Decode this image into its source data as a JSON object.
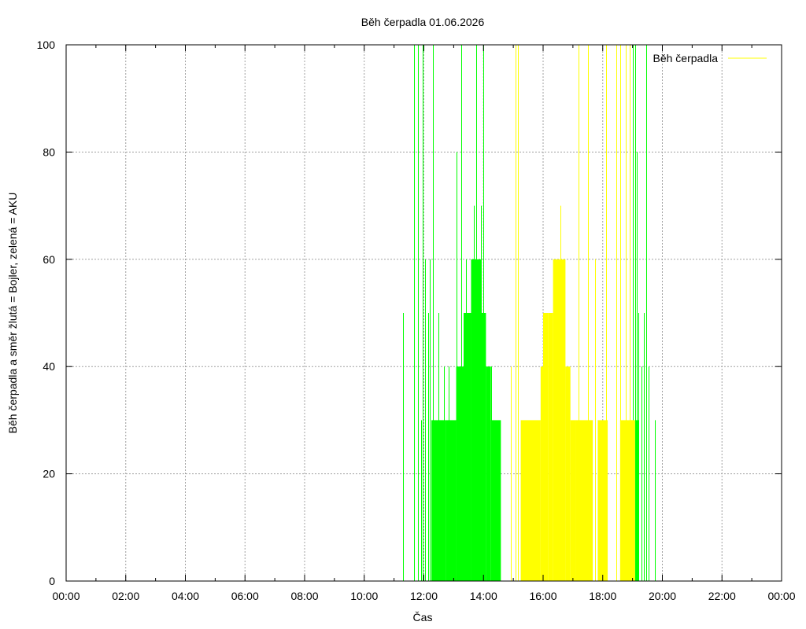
{
  "chart_data": {
    "type": "area",
    "title": "Běh čerpadla 01.06.2026",
    "xlabel": "Čas",
    "ylabel": "Běh čerpadla a směr žlutá = Bojler, zelená = AKU",
    "xlim": [
      "00:00",
      "24:00"
    ],
    "ylim": [
      0,
      100
    ],
    "x_ticks": [
      "00:00",
      "02:00",
      "04:00",
      "06:00",
      "08:00",
      "10:00",
      "12:00",
      "14:00",
      "16:00",
      "18:00",
      "20:00",
      "22:00",
      "00:00"
    ],
    "y_ticks": [
      "0",
      "20",
      "40",
      "60",
      "80",
      "100"
    ],
    "grid": true,
    "legend": {
      "position": "top-right",
      "label": "Běh čerpadla",
      "color": "#ffff00"
    },
    "colors": {
      "green": "#00ff00",
      "yellow": "#ffff00",
      "grid": "#a0a0a0"
    },
    "series": [
      {
        "color": "green",
        "bars": [
          {
            "from": "12:15",
            "to": "12:45",
            "value": 30
          },
          {
            "from": "12:45",
            "to": "13:05",
            "value": 30
          },
          {
            "from": "13:05",
            "to": "13:20",
            "value": 40
          },
          {
            "from": "13:20",
            "to": "13:35",
            "value": 50
          },
          {
            "from": "13:35",
            "to": "13:55",
            "value": 60
          },
          {
            "from": "13:55",
            "to": "14:05",
            "value": 50
          },
          {
            "from": "14:05",
            "to": "14:15",
            "value": 40
          },
          {
            "from": "14:15",
            "to": "14:35",
            "value": 30
          },
          {
            "from": "19:05",
            "to": "19:13",
            "value": 30
          }
        ],
        "spikes": [
          {
            "time": "11:18",
            "value": 50
          },
          {
            "time": "11:40",
            "value": 100
          },
          {
            "time": "11:48",
            "value": 100
          },
          {
            "time": "11:55",
            "value": 30
          },
          {
            "time": "11:58",
            "value": 100
          },
          {
            "time": "12:03",
            "value": 60
          },
          {
            "time": "12:08",
            "value": 50
          },
          {
            "time": "12:12",
            "value": 60
          },
          {
            "time": "12:19",
            "value": 100
          },
          {
            "time": "12:30",
            "value": 50
          },
          {
            "time": "12:40",
            "value": 40
          },
          {
            "time": "12:50",
            "value": 40
          },
          {
            "time": "13:05",
            "value": 80
          },
          {
            "time": "13:08",
            "value": 40
          },
          {
            "time": "13:15",
            "value": 100
          },
          {
            "time": "13:25",
            "value": 60
          },
          {
            "time": "13:40",
            "value": 70
          },
          {
            "time": "13:45",
            "value": 100
          },
          {
            "time": "13:55",
            "value": 70
          },
          {
            "time": "14:00",
            "value": 100
          },
          {
            "time": "14:15",
            "value": 40
          },
          {
            "time": "19:00",
            "value": 100
          },
          {
            "time": "19:05",
            "value": 100
          },
          {
            "time": "19:08",
            "value": 80
          },
          {
            "time": "19:12",
            "value": 50
          },
          {
            "time": "19:18",
            "value": 40
          },
          {
            "time": "19:23",
            "value": 50
          },
          {
            "time": "19:27",
            "value": 100
          },
          {
            "time": "19:33",
            "value": 40
          },
          {
            "time": "19:45",
            "value": 30
          }
        ]
      },
      {
        "color": "yellow",
        "bars": [
          {
            "from": "15:15",
            "to": "15:55",
            "value": 30
          },
          {
            "from": "15:55",
            "to": "16:00",
            "value": 40
          },
          {
            "from": "16:00",
            "to": "16:10",
            "value": 50
          },
          {
            "from": "16:10",
            "to": "16:20",
            "value": 50
          },
          {
            "from": "16:20",
            "to": "16:45",
            "value": 60
          },
          {
            "from": "16:45",
            "to": "16:55",
            "value": 40
          },
          {
            "from": "16:55",
            "to": "17:05",
            "value": 30
          },
          {
            "from": "17:05",
            "to": "17:40",
            "value": 30
          },
          {
            "from": "17:50",
            "to": "18:10",
            "value": 30
          },
          {
            "from": "18:35",
            "to": "19:05",
            "value": 30
          }
        ],
        "spikes": [
          {
            "time": "14:55",
            "value": 40
          },
          {
            "time": "15:05",
            "value": 100
          },
          {
            "time": "15:10",
            "value": 100
          },
          {
            "time": "16:35",
            "value": 70
          },
          {
            "time": "17:12",
            "value": 100
          },
          {
            "time": "17:30",
            "value": 100
          },
          {
            "time": "17:45",
            "value": 60
          },
          {
            "time": "18:07",
            "value": 100
          },
          {
            "time": "18:28",
            "value": 100
          },
          {
            "time": "18:35",
            "value": 100
          },
          {
            "time": "18:47",
            "value": 100
          },
          {
            "time": "18:55",
            "value": 100
          }
        ]
      }
    ]
  }
}
